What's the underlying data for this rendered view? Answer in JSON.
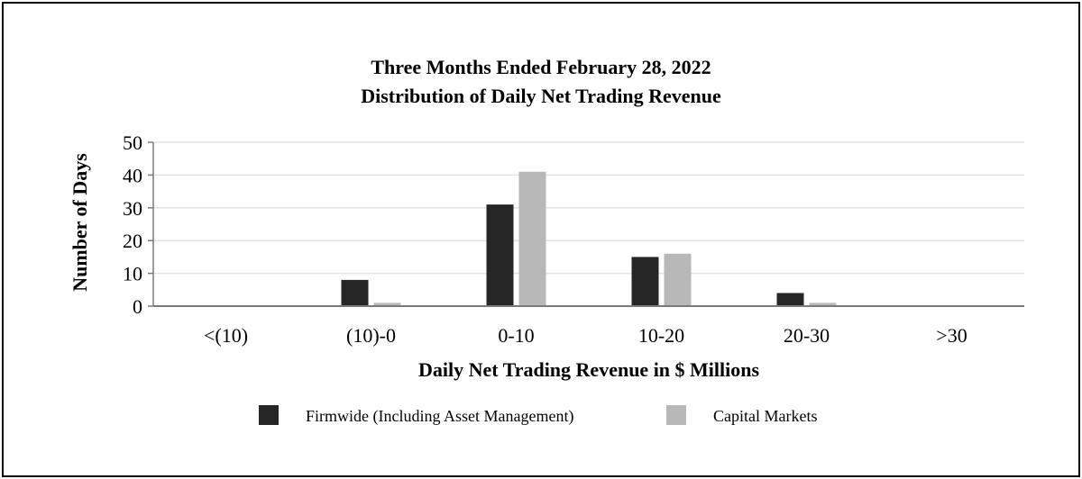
{
  "chart_data": {
    "type": "bar",
    "title": "Three Months Ended February 28, 2022",
    "subtitle": "Distribution of Daily Net Trading Revenue",
    "xlabel": "Daily Net Trading Revenue in $ Millions",
    "ylabel": "Number of Days",
    "categories": [
      "<(10)",
      "(10)-0",
      "0-10",
      "10-20",
      "20-30",
      ">30"
    ],
    "ylim": [
      0,
      50
    ],
    "yticks": [
      0,
      10,
      20,
      30,
      40,
      50
    ],
    "grid": true,
    "legend": "bottom",
    "series": [
      {
        "name": "Firmwide (Including Asset Management)",
        "color": "#262626",
        "values": [
          0,
          8,
          31,
          15,
          4,
          0
        ]
      },
      {
        "name": "Capital Markets",
        "color": "#b8b8b8",
        "values": [
          0,
          1,
          41,
          16,
          1,
          0
        ]
      }
    ]
  }
}
